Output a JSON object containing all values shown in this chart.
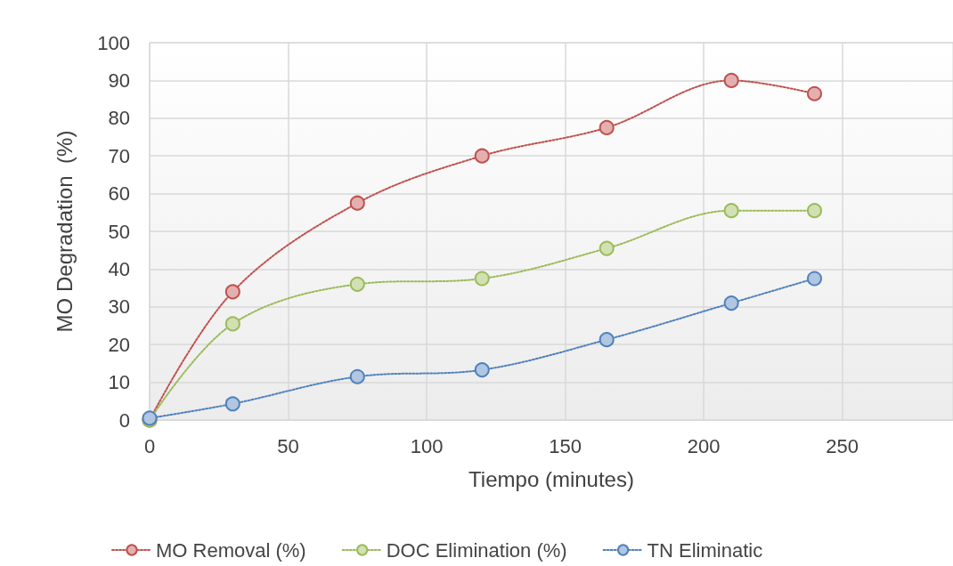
{
  "chart_data": {
    "type": "line",
    "xlabel": "Tiempo (minutes)",
    "ylabel": "MO Degradation  (%)",
    "x": [
      0,
      30,
      75,
      120,
      165,
      210,
      240
    ],
    "series": [
      {
        "name": "MO Removal (%)",
        "color": "#c0504d",
        "values": [
          0,
          34,
          57.5,
          70,
          77.5,
          90,
          86.5
        ]
      },
      {
        "name": "DOC Elimination (%)",
        "color": "#9bbb59",
        "values": [
          0,
          25.5,
          36,
          37.5,
          45.5,
          55.5,
          55.5
        ]
      },
      {
        "name": "TN Eliminatic",
        "color": "#4f81bd",
        "values": [
          0.5,
          4.3,
          11.5,
          13.3,
          21.3,
          31,
          37.5
        ]
      }
    ],
    "xlim": [
      0,
      290
    ],
    "xticks": [
      0,
      50,
      100,
      150,
      200,
      250
    ],
    "ylim": [
      0,
      100
    ],
    "yticks": [
      0,
      10,
      20,
      30,
      40,
      50,
      60,
      70,
      80,
      90,
      100
    ],
    "grid": true,
    "legend": "bottom",
    "marker": "circle",
    "line_style": "dotted"
  }
}
